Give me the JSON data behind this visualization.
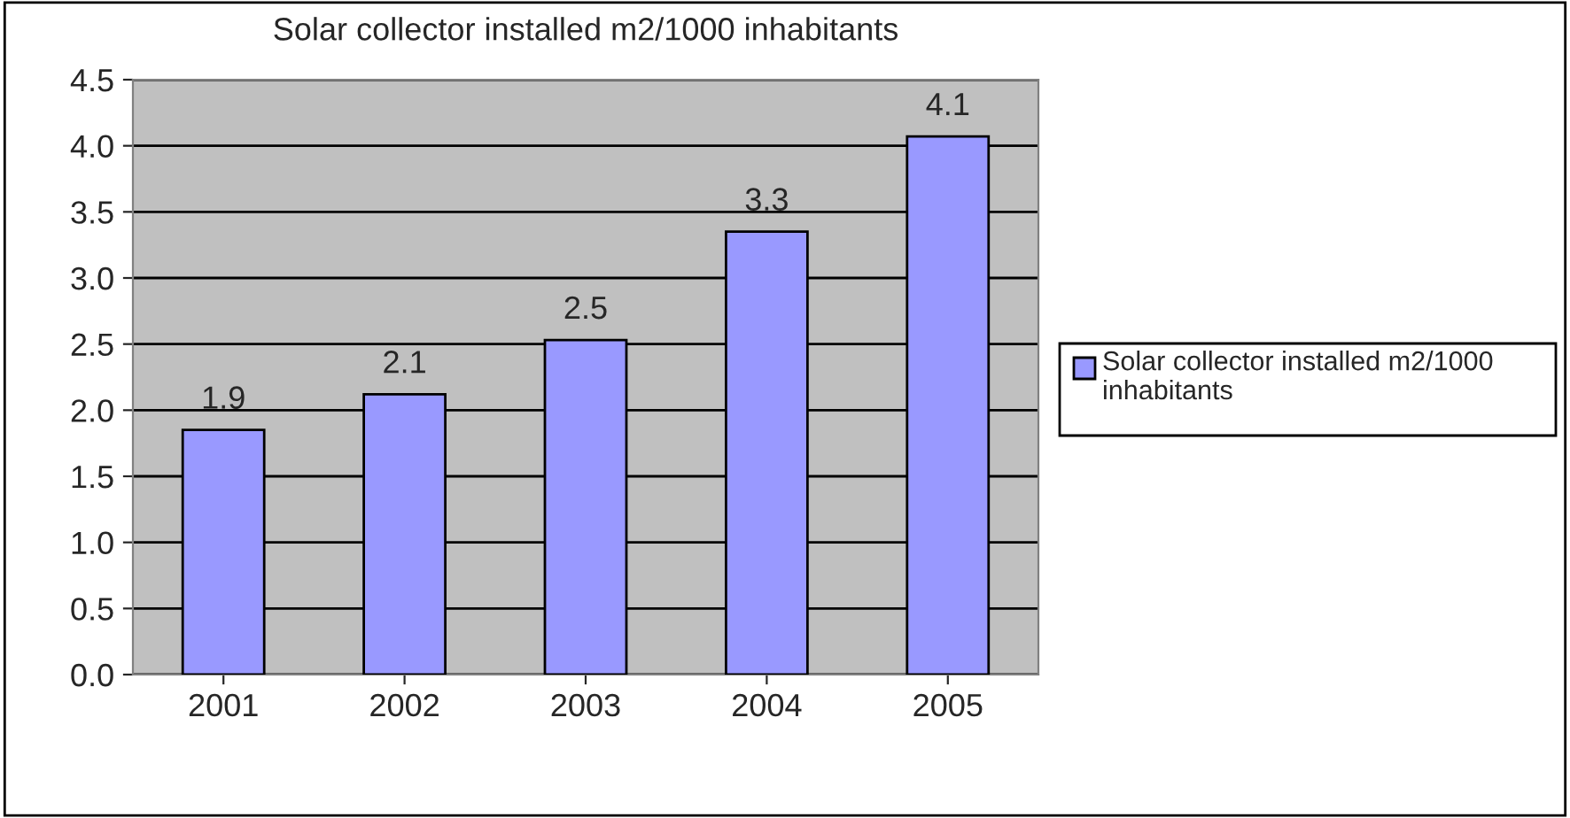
{
  "chart_data": {
    "type": "bar",
    "title": "Solar collector installed m2/1000 inhabitants",
    "categories": [
      "2001",
      "2002",
      "2003",
      "2004",
      "2005"
    ],
    "series": [
      {
        "name": "Solar collector installed m2/1000 inhabitants",
        "color": "#9999ff",
        "values": [
          1.85,
          2.12,
          2.53,
          3.35,
          4.07
        ],
        "value_labels": [
          "1.9",
          "2.1",
          "2.5",
          "3.3",
          "4.1"
        ]
      }
    ],
    "ylim": [
      0,
      4.5
    ],
    "yticks": [
      {
        "value": 0,
        "label": "0.0"
      },
      {
        "value": 0.5,
        "label": "0.5"
      },
      {
        "value": 1,
        "label": "1.0"
      },
      {
        "value": 1.5,
        "label": "1.5"
      },
      {
        "value": 2,
        "label": "2.0"
      },
      {
        "value": 2.5,
        "label": "2.5"
      },
      {
        "value": 3,
        "label": "3.0"
      },
      {
        "value": 3.5,
        "label": "3.5"
      },
      {
        "value": 4,
        "label": "4.0"
      },
      {
        "value": 4.5,
        "label": "4.5"
      }
    ],
    "grid": "y",
    "legend": "right"
  }
}
